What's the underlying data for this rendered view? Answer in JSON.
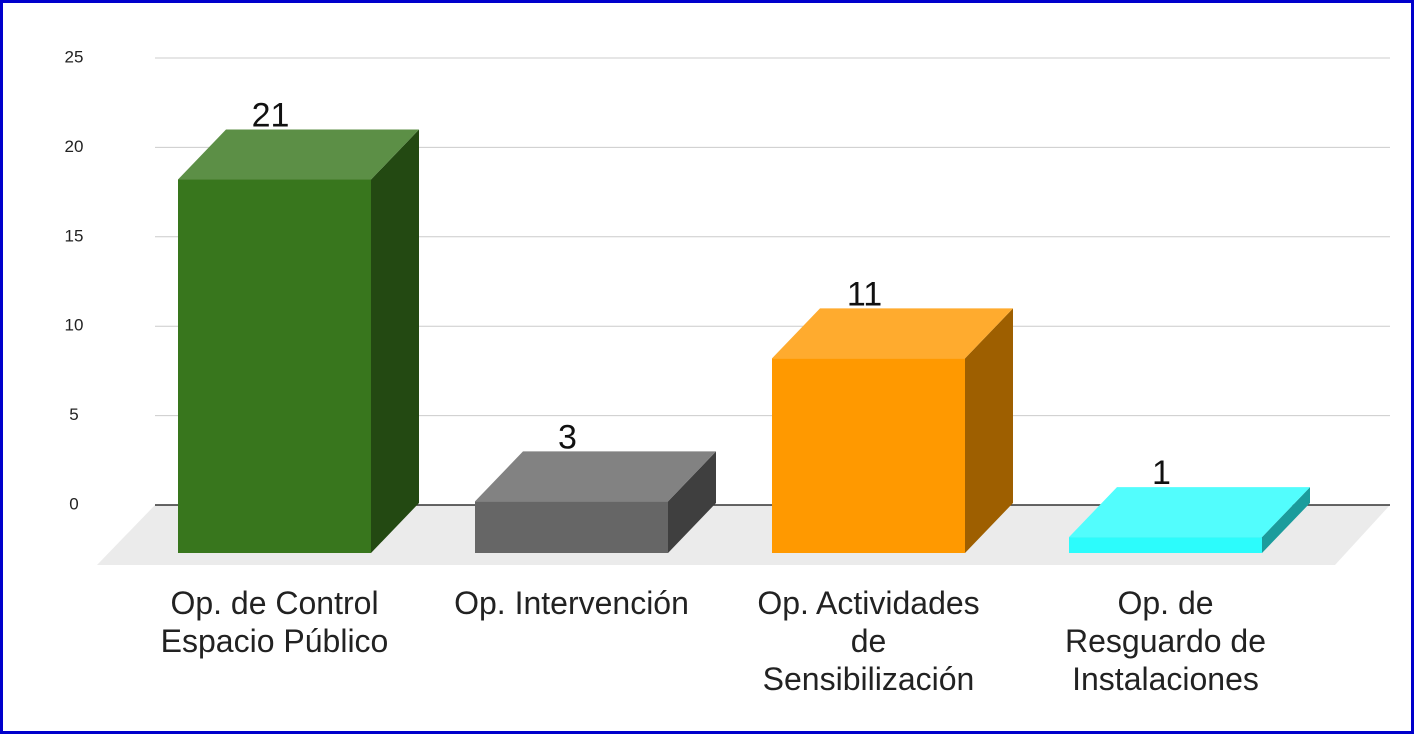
{
  "chart_data": {
    "type": "bar3d",
    "categories": [
      "Op. de Control\nEspacio Público",
      "Op. Intervención",
      "Op. Actividades\nde\nSensibilización",
      "Op. de\nResguardo de\nInstalaciones"
    ],
    "series": [
      {
        "values": [
          21,
          3,
          11,
          1
        ],
        "colors": [
          "#38761d",
          "#666666",
          "#ff9900",
          "#2cfcfc"
        ]
      }
    ],
    "ylim": [
      0,
      25
    ],
    "yticks": [
      0,
      5,
      10,
      15,
      20,
      25
    ],
    "grid": true
  }
}
